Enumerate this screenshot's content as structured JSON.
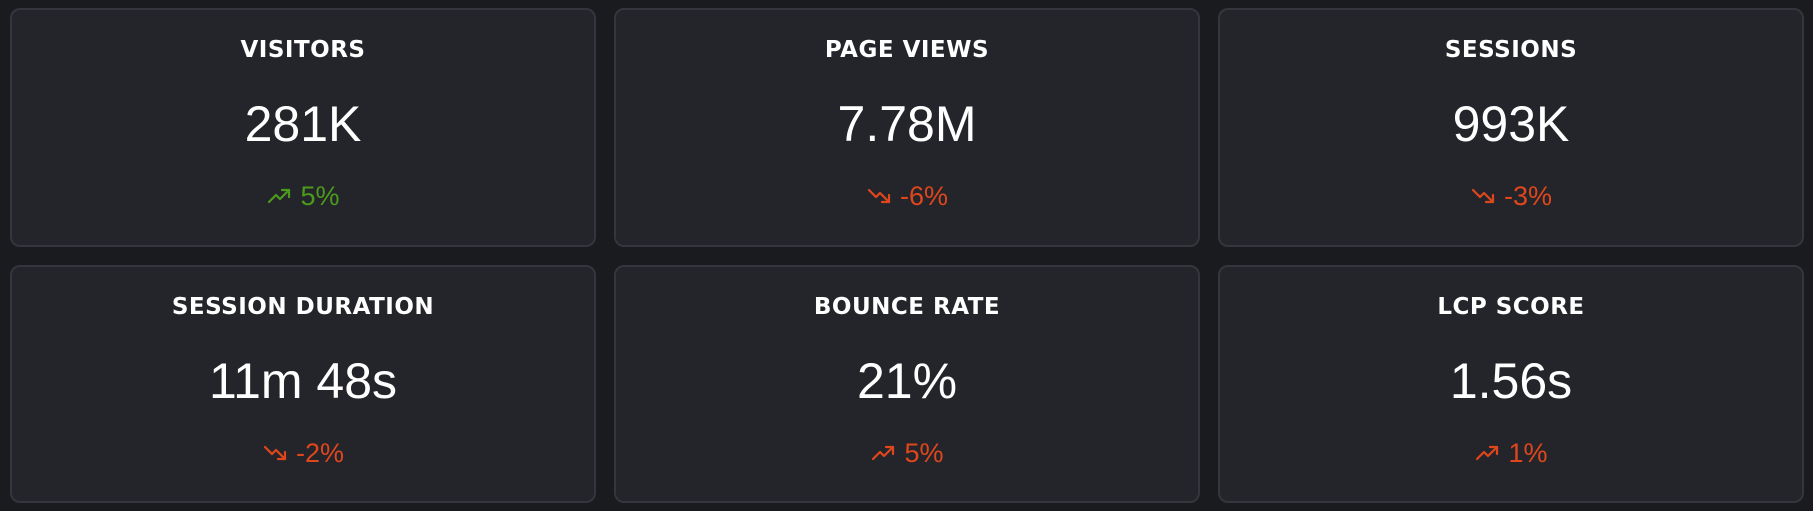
{
  "colors": {
    "background": "#1a1b1f",
    "card": "#23252b",
    "card_border": "#33363d",
    "text": "#ffffff",
    "positive": "#4c9a1a",
    "negative": "#e0461c"
  },
  "metrics": [
    {
      "title": "VISITORS",
      "value": "281K",
      "change": "5%",
      "trend": "up",
      "sentiment": "positive",
      "icon": "trending-up-icon"
    },
    {
      "title": "PAGE VIEWS",
      "value": "7.78M",
      "change": "-6%",
      "trend": "down",
      "sentiment": "negative",
      "icon": "trending-down-icon"
    },
    {
      "title": "SESSIONS",
      "value": "993K",
      "change": "-3%",
      "trend": "down",
      "sentiment": "negative",
      "icon": "trending-down-icon"
    },
    {
      "title": "SESSION DURATION",
      "value": "11m 48s",
      "change": "-2%",
      "trend": "down",
      "sentiment": "negative",
      "icon": "trending-down-icon"
    },
    {
      "title": "BOUNCE RATE",
      "value": "21%",
      "change": "5%",
      "trend": "up",
      "sentiment": "negative",
      "icon": "trending-up-icon"
    },
    {
      "title": "LCP SCORE",
      "value": "1.56s",
      "change": "1%",
      "trend": "up",
      "sentiment": "negative",
      "icon": "trending-up-icon"
    }
  ]
}
